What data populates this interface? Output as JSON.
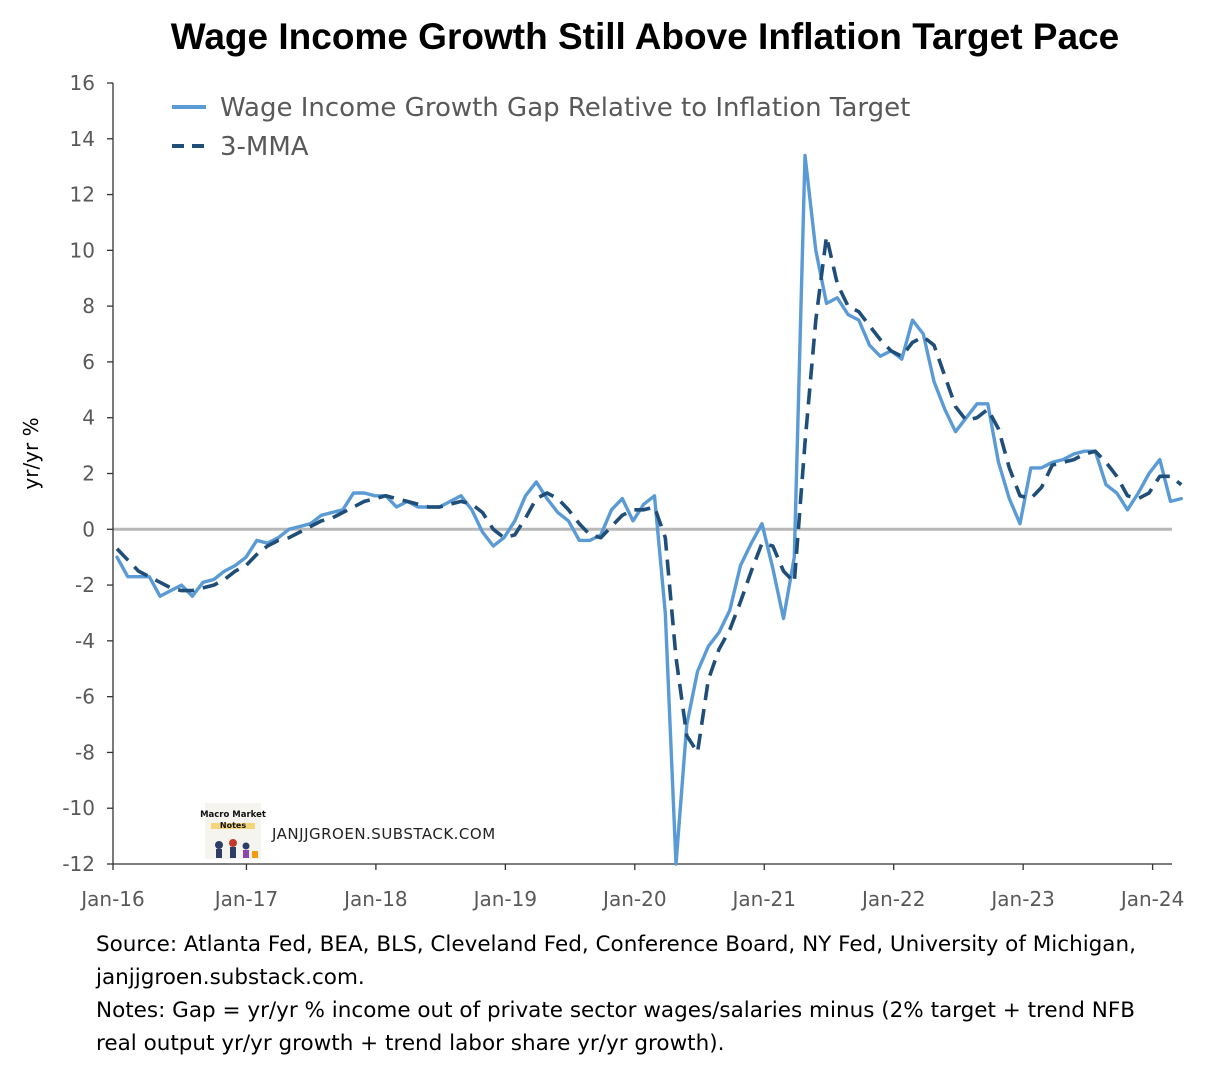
{
  "chart_data": {
    "type": "line",
    "title": "Wage Income Growth Still Above Inflation Target Pace",
    "ylabel": "yr/yr %",
    "xlabel": "",
    "ylim": [
      -12,
      16
    ],
    "yticks": [
      -12,
      -10,
      -8,
      -6,
      -4,
      -2,
      0,
      2,
      4,
      6,
      8,
      10,
      12,
      14,
      16
    ],
    "xticks": [
      "Jan-16",
      "Jan-17",
      "Jan-18",
      "Jan-19",
      "Jan-20",
      "Jan-21",
      "Jan-22",
      "Jan-23",
      "Jan-24"
    ],
    "x_start": "Jan-16",
    "x_end": "Mar-24",
    "legend_position": "top-left",
    "zero_line": true,
    "series": [
      {
        "name": "Wage Income Growth Gap Relative to Inflation Target",
        "style": "solid",
        "color": "#5b9bd5",
        "values": [
          -1.0,
          -1.7,
          -1.7,
          -1.7,
          -2.4,
          -2.2,
          -2.0,
          -2.4,
          -1.9,
          -1.8,
          -1.5,
          -1.3,
          -1.0,
          -0.4,
          -0.5,
          -0.3,
          0.0,
          0.1,
          0.2,
          0.5,
          0.6,
          0.7,
          1.3,
          1.3,
          1.2,
          1.2,
          0.8,
          1.0,
          0.8,
          0.8,
          0.8,
          1.0,
          1.2,
          0.7,
          -0.1,
          -0.6,
          -0.3,
          0.3,
          1.2,
          1.7,
          1.1,
          0.6,
          0.3,
          -0.4,
          -0.4,
          -0.2,
          0.7,
          1.1,
          0.3,
          0.9,
          1.2,
          -3.0,
          -12.0,
          -7.0,
          -5.1,
          -4.2,
          -3.7,
          -2.9,
          -1.3,
          -0.5,
          0.2,
          -1.4,
          -3.2,
          -1.0,
          13.4,
          10.0,
          8.1,
          8.3,
          7.7,
          7.5,
          6.6,
          6.2,
          6.4,
          6.1,
          7.5,
          7.0,
          5.3,
          4.3,
          3.5,
          4.0,
          4.5,
          4.5,
          2.4,
          1.1,
          0.2,
          2.2,
          2.2,
          2.4,
          2.5,
          2.7,
          2.8,
          2.8,
          1.6,
          1.3,
          0.7,
          1.3,
          2.0,
          2.5,
          1.0,
          1.1
        ],
        "data_labels": []
      },
      {
        "name": "3-MMA",
        "style": "dashed",
        "color": "#1f4e79",
        "values": [
          -0.7,
          -1.1,
          -1.5,
          -1.7,
          -1.9,
          -2.1,
          -2.2,
          -2.2,
          -2.1,
          -2.0,
          -1.8,
          -1.5,
          -1.3,
          -0.9,
          -0.6,
          -0.4,
          -0.3,
          -0.1,
          0.1,
          0.3,
          0.4,
          0.6,
          0.8,
          1.0,
          1.1,
          1.2,
          1.1,
          1.0,
          0.9,
          0.8,
          0.8,
          0.9,
          1.0,
          0.9,
          0.6,
          0.0,
          -0.3,
          -0.2,
          0.4,
          1.1,
          1.3,
          1.1,
          0.7,
          0.2,
          -0.2,
          -0.3,
          0.1,
          0.5,
          0.7,
          0.7,
          0.8,
          -0.3,
          -4.6,
          -7.4,
          -8.0,
          -5.4,
          -4.3,
          -3.6,
          -2.6,
          -1.5,
          -0.5,
          -0.6,
          -1.5,
          -1.9,
          3.1,
          7.5,
          10.5,
          8.8,
          8.0,
          7.8,
          7.3,
          6.8,
          6.4,
          6.2,
          6.7,
          6.9,
          6.6,
          5.5,
          4.4,
          3.9,
          4.0,
          4.3,
          3.6,
          2.2,
          1.2,
          1.1,
          1.5,
          2.3,
          2.4,
          2.5,
          2.7,
          2.8,
          2.4,
          1.9,
          1.2,
          1.1,
          1.3,
          1.9,
          1.9,
          1.6
        ],
        "data_labels": []
      }
    ]
  },
  "watermark": {
    "logo_text_line1": "Macro Market",
    "logo_text_line2": "Notes",
    "site": "JANJJGROEN.SUBSTACK.COM"
  },
  "source_note": {
    "line1": "Source: Atlanta Fed, BEA, BLS, Cleveland Fed, Conference Board, NY Fed, University of Michigan,",
    "line2": "janjjgroen.substack.com.",
    "line3": "Notes: Gap = yr/yr % income out of private sector wages/salaries minus (2% target + trend NFB",
    "line4": "real output yr/yr growth + trend labor share yr/yr growth)."
  }
}
